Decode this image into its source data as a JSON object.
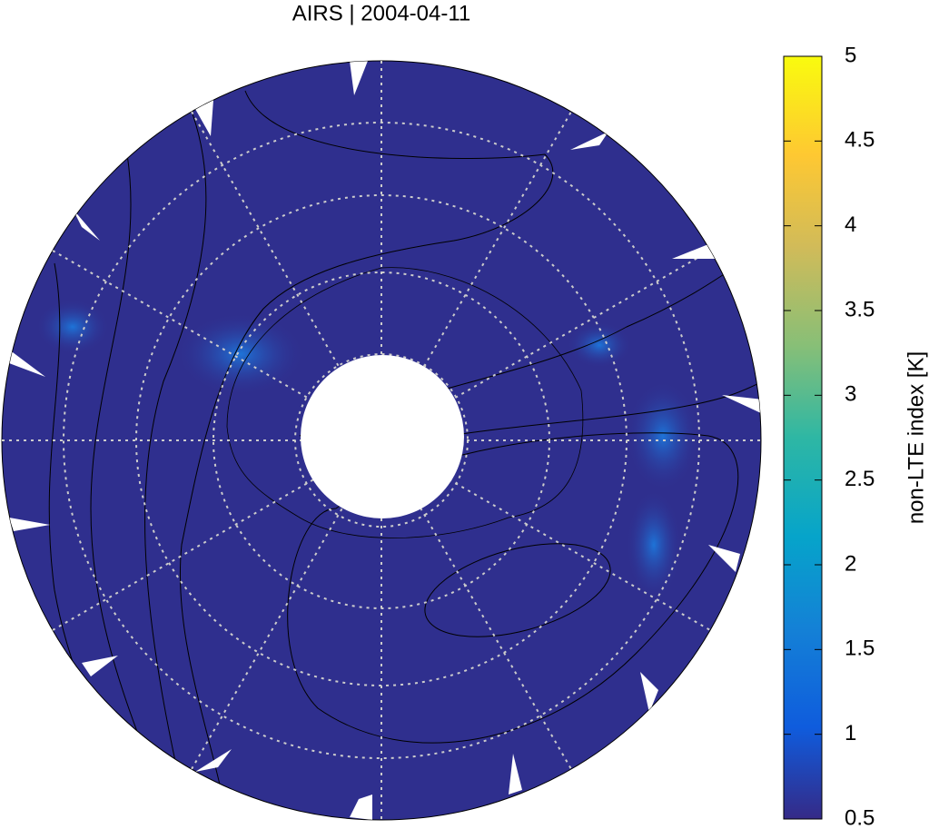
{
  "title": "AIRS | 2004-04-11",
  "colorbar": {
    "label": "non-LTE index [K]",
    "lim": [
      0.5,
      5
    ],
    "ticks": [
      0.5,
      1,
      1.5,
      2,
      2.5,
      3,
      3.5,
      4,
      4.5,
      5
    ]
  }
}
